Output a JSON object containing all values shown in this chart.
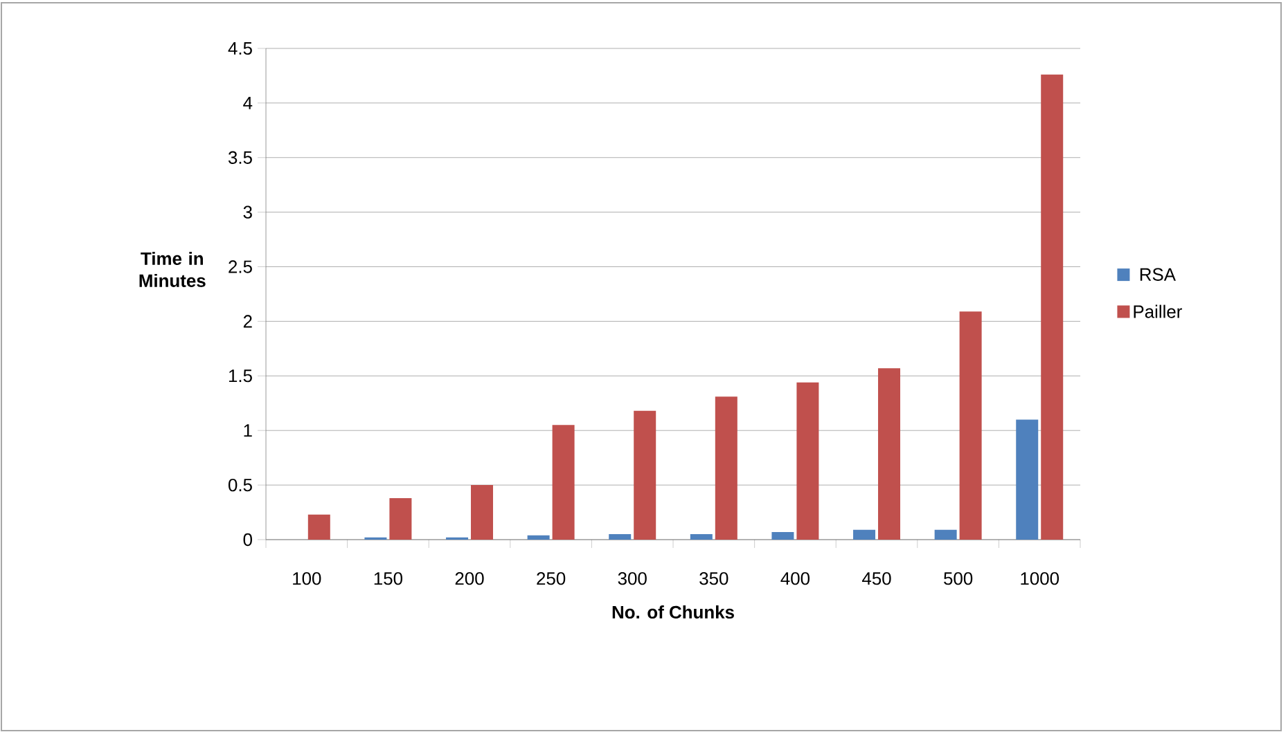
{
  "chart_data": {
    "type": "bar",
    "xlabel": "No. of Chunks",
    "ylabel": "Time in Minutes",
    "categories": [
      "100",
      "150",
      "200",
      "250",
      "300",
      "350",
      "400",
      "450",
      "500",
      "1000"
    ],
    "series": [
      {
        "name": "RSA",
        "color": "#4f81bd",
        "values": [
          0,
          0.02,
          0.02,
          0.04,
          0.05,
          0.05,
          0.07,
          0.09,
          0.09,
          1.1
        ]
      },
      {
        "name": "Pailler",
        "color": "#c0504d",
        "values": [
          0.23,
          0.38,
          0.5,
          1.05,
          1.18,
          1.31,
          1.44,
          1.57,
          2.09,
          4.26
        ]
      }
    ],
    "ylim": [
      0,
      4.5
    ],
    "yticks": [
      0,
      0.5,
      1,
      1.5,
      2,
      2.5,
      3,
      3.5,
      4,
      4.5
    ],
    "grid": "y",
    "legend": "right"
  }
}
